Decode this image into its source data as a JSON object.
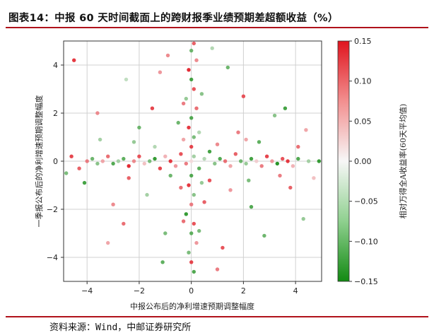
{
  "header": {
    "title": "图表14：中报 60 天时间截面上的跨财报季业绩预期差超额收益（%）"
  },
  "footer": {
    "source": "资料来源：Wind，中邮证券研究所"
  },
  "colors": {
    "accent_rule": "#b0121b",
    "positive": "#e0141e",
    "neutral": "#f7f7f7",
    "negative": "#128a12",
    "grid": "#d0d0d0",
    "plot_bg": "#ffffff"
  },
  "chart_data": {
    "type": "scatter",
    "title": "",
    "xlabel": "中报公布后的净利增速预期调整幅度",
    "ylabel": "一季报公布后的净利增速预期调整幅度",
    "xlim": [
      -4.9,
      5.0
    ],
    "ylim": [
      -5.0,
      5.0
    ],
    "xticks": [
      -4,
      -2,
      0,
      2,
      4
    ],
    "yticks": [
      -4,
      -2,
      0,
      2,
      4
    ],
    "grid": true,
    "colorbar": {
      "label": "相对万得全A收益率(60天平均值)",
      "ticks": [
        0.15,
        0.1,
        0.05,
        0.0,
        -0.05,
        -0.1,
        -0.15
      ],
      "range": [
        -0.15,
        0.15
      ]
    },
    "points": [
      [
        0.0,
        0.0,
        0.02
      ],
      [
        0.1,
        0.2,
        -0.06
      ],
      [
        -0.2,
        -0.1,
        0.09
      ],
      [
        0.3,
        -0.3,
        -0.11
      ],
      [
        -0.4,
        0.3,
        0.12
      ],
      [
        0.5,
        0.1,
        -0.05
      ],
      [
        -0.6,
        -0.2,
        0.07
      ],
      [
        0.7,
        0.4,
        -0.13
      ],
      [
        -0.8,
        0.0,
        0.14
      ],
      [
        0.9,
        -0.1,
        -0.08
      ],
      [
        -1.0,
        0.2,
        0.05
      ],
      [
        1.1,
        0.1,
        -0.12
      ],
      [
        -1.2,
        -0.3,
        0.13
      ],
      [
        1.3,
        0.0,
        0.1
      ],
      [
        -1.4,
        0.1,
        -0.14
      ],
      [
        1.5,
        -0.2,
        0.06
      ],
      [
        -1.6,
        0.0,
        -0.09
      ],
      [
        1.7,
        0.3,
        0.11
      ],
      [
        -1.8,
        -0.1,
        0.04
      ],
      [
        1.9,
        0.0,
        -0.1
      ],
      [
        -2.0,
        0.2,
        0.12
      ],
      [
        2.1,
        -0.1,
        -0.07
      ],
      [
        -2.2,
        0.0,
        0.08
      ],
      [
        2.3,
        0.1,
        -0.13
      ],
      [
        -2.4,
        -0.2,
        0.15
      ],
      [
        2.5,
        0.0,
        0.03
      ],
      [
        -2.6,
        0.1,
        -0.11
      ],
      [
        2.7,
        -0.2,
        0.09
      ],
      [
        -2.8,
        0.0,
        -0.06
      ],
      [
        2.9,
        0.2,
        0.13
      ],
      [
        -3.0,
        -0.1,
        -0.12
      ],
      [
        3.1,
        0.0,
        0.07
      ],
      [
        -3.2,
        0.2,
        0.1
      ],
      [
        3.3,
        -0.1,
        -0.15
      ],
      [
        -3.4,
        0.0,
        0.06
      ],
      [
        3.5,
        0.1,
        0.12
      ],
      [
        -3.6,
        -0.1,
        -0.08
      ],
      [
        3.7,
        0.0,
        0.14
      ],
      [
        -3.8,
        0.1,
        -0.1
      ],
      [
        3.9,
        -0.2,
        0.05
      ],
      [
        -4.0,
        0.0,
        0.09
      ],
      [
        4.1,
        0.1,
        -0.12
      ],
      [
        -4.3,
        -0.3,
        0.11
      ],
      [
        4.5,
        0.0,
        -0.06
      ],
      [
        -4.6,
        0.2,
        0.13
      ],
      [
        4.9,
        0.0,
        -0.14
      ],
      [
        -4.8,
        -0.5,
        -0.09
      ],
      [
        4.7,
        -0.7,
        0.04
      ],
      [
        0.0,
        0.6,
        0.13
      ],
      [
        0.1,
        1.0,
        -0.09
      ],
      [
        -0.1,
        1.4,
        0.14
      ],
      [
        0.0,
        1.8,
        -0.12
      ],
      [
        0.2,
        2.2,
        0.1
      ],
      [
        -0.2,
        2.6,
        -0.07
      ],
      [
        0.1,
        3.0,
        0.12
      ],
      [
        0.0,
        3.4,
        -0.13
      ],
      [
        -0.1,
        3.8,
        0.15
      ],
      [
        0.2,
        4.2,
        0.08
      ],
      [
        0.0,
        4.6,
        -0.1
      ],
      [
        0.1,
        4.9,
        0.11
      ],
      [
        0.0,
        -0.6,
        -0.12
      ],
      [
        -0.1,
        -1.0,
        0.14
      ],
      [
        0.1,
        -1.4,
        -0.08
      ],
      [
        0.0,
        -1.8,
        0.09
      ],
      [
        -0.2,
        -2.2,
        -0.14
      ],
      [
        0.1,
        -2.6,
        0.12
      ],
      [
        0.0,
        -3.0,
        -0.11
      ],
      [
        0.2,
        -3.4,
        0.07
      ],
      [
        -0.1,
        -3.8,
        -0.09
      ],
      [
        0.0,
        -4.2,
        0.13
      ],
      [
        0.1,
        -4.6,
        -0.12
      ],
      [
        -0.3,
        0.9,
        0.06
      ],
      [
        0.3,
        1.2,
        -0.05
      ],
      [
        -0.4,
        -1.1,
        0.1
      ],
      [
        0.4,
        -0.9,
        -0.07
      ],
      [
        -0.5,
        1.6,
        -0.1
      ],
      [
        0.5,
        -1.7,
        0.11
      ],
      [
        -0.3,
        2.4,
        0.09
      ],
      [
        0.4,
        2.8,
        -0.08
      ],
      [
        -0.3,
        -2.5,
        0.1
      ],
      [
        0.3,
        -2.9,
        -0.09
      ],
      [
        -4.5,
        4.2,
        0.14
      ],
      [
        -2.5,
        3.4,
        -0.04
      ],
      [
        -1.2,
        3.7,
        0.07
      ],
      [
        1.4,
        3.9,
        -0.1
      ],
      [
        2.0,
        2.7,
        0.12
      ],
      [
        3.2,
        1.9,
        -0.08
      ],
      [
        3.6,
        2.2,
        -0.13
      ],
      [
        4.4,
        1.3,
        0.06
      ],
      [
        -3.6,
        2.0,
        0.08
      ],
      [
        -2.0,
        1.4,
        -0.1
      ],
      [
        -1.5,
        2.2,
        0.13
      ],
      [
        1.8,
        1.2,
        0.09
      ],
      [
        2.6,
        0.8,
        -0.11
      ],
      [
        4.1,
        0.6,
        0.1
      ],
      [
        -4.1,
        -0.9,
        -0.13
      ],
      [
        -3.0,
        -1.8,
        0.08
      ],
      [
        -1.7,
        -1.4,
        -0.06
      ],
      [
        1.5,
        -1.2,
        0.07
      ],
      [
        2.3,
        -1.9,
        -0.12
      ],
      [
        3.8,
        -1.1,
        0.11
      ],
      [
        4.3,
        -2.4,
        -0.07
      ],
      [
        -2.6,
        -2.6,
        0.1
      ],
      [
        -1.0,
        -3.0,
        -0.09
      ],
      [
        1.2,
        -3.6,
        0.12
      ],
      [
        2.8,
        -3.1,
        -0.1
      ],
      [
        -3.2,
        -3.4,
        0.06
      ],
      [
        -1.1,
        -4.2,
        -0.11
      ],
      [
        1.0,
        -4.5,
        0.09
      ],
      [
        0.8,
        4.7,
        -0.05
      ],
      [
        -0.9,
        4.4,
        0.08
      ],
      [
        -1.4,
        0.6,
        -0.05
      ],
      [
        1.0,
        0.7,
        0.08
      ],
      [
        -0.8,
        -0.6,
        -0.1
      ],
      [
        0.7,
        -0.8,
        0.12
      ],
      [
        -2.2,
        0.8,
        -0.07
      ],
      [
        2.1,
        0.9,
        0.06
      ],
      [
        -2.4,
        -0.7,
        0.11
      ],
      [
        2.2,
        -0.8,
        -0.09
      ],
      [
        -3.5,
        0.9,
        -0.06
      ],
      [
        3.4,
        -0.6,
        0.09
      ]
    ]
  }
}
